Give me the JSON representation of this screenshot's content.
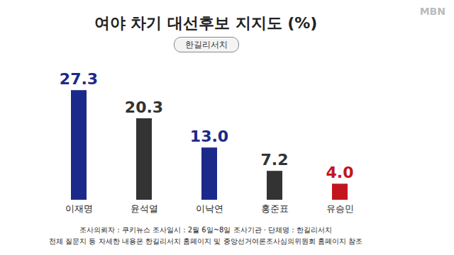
{
  "chart_data": {
    "type": "bar",
    "title": "여야 차기 대선후보 지지도 (%)",
    "subtitle": "한길리서치",
    "categories": [
      "이재명",
      "윤석열",
      "이낙연",
      "홍준표",
      "유승민"
    ],
    "values": [
      27.3,
      20.3,
      13.0,
      7.2,
      4.0
    ],
    "value_labels": [
      "27.3",
      "20.3",
      "13.0",
      "7.2",
      "4.0"
    ],
    "colors": [
      "#1b2a8a",
      "#333333",
      "#1b2a8a",
      "#333333",
      "#c2161e"
    ],
    "ylim": [
      0,
      30
    ],
    "data_labels": true,
    "tick_labels": "x",
    "grid": false,
    "annotations": [
      "MBN",
      "조사의뢰자 : 쿠키뉴스   조사일시 : 2월 6일~8일   조사기관 · 단체명 : 한길리서치",
      "전체 질문지 등 자세한 내용은 한길리서치 홈페이지 및 중앙선거여론조사심의위원회 홈페이지 참조"
    ]
  }
}
